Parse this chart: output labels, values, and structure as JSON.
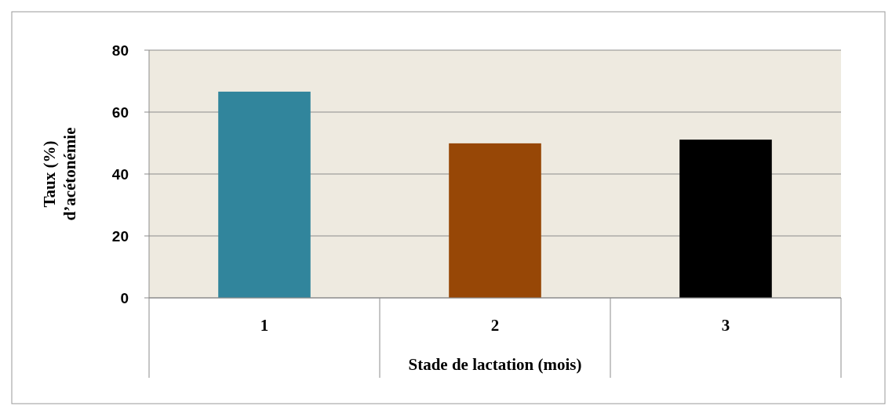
{
  "chart_data": {
    "type": "bar",
    "categories": [
      "1",
      "2",
      "3"
    ],
    "colors": [
      "#31859c",
      "#974706",
      "#000000"
    ],
    "values": [
      66.6,
      49.9,
      51.1
    ],
    "ylim": [
      0,
      80
    ],
    "yticks": [
      0,
      20,
      40,
      60,
      80
    ],
    "grid": "y",
    "xlabel": "Stade de lactation (mois)",
    "ylabel": "Taux (%)\nd’acétonémie"
  }
}
